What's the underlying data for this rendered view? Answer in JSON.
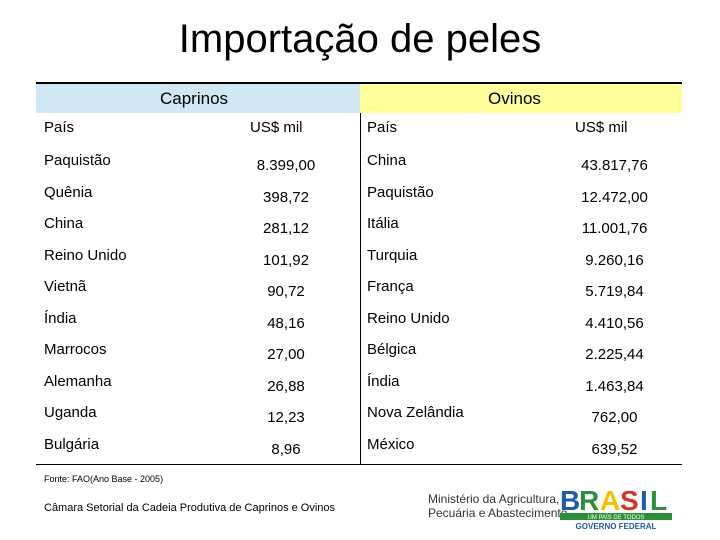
{
  "title": "Importação de peles",
  "groups": {
    "left": "Caprinos",
    "right": "Ovinos"
  },
  "columns": {
    "country": "País",
    "value": "US$ mil"
  },
  "caprinos": [
    {
      "country": "Paquistão",
      "value": "8.399,00"
    },
    {
      "country": "Quênia",
      "value": "398,72"
    },
    {
      "country": "China",
      "value": "281,12"
    },
    {
      "country": "Reino Unido",
      "value": "101,92"
    },
    {
      "country": "Vietnã",
      "value": "90,72"
    },
    {
      "country": "Índia",
      "value": "48,16"
    },
    {
      "country": "Marrocos",
      "value": "27,00"
    },
    {
      "country": "Alemanha",
      "value": "26,88"
    },
    {
      "country": "Uganda",
      "value": "12,23"
    },
    {
      "country": "Bulgária",
      "value": "8,96"
    }
  ],
  "ovinos": [
    {
      "country": "China",
      "value": "43.817,76"
    },
    {
      "country": "Paquistão",
      "value": "12.472,00"
    },
    {
      "country": "Itália",
      "value": "11.001,76"
    },
    {
      "country": "Turquia",
      "value": "9.260,16"
    },
    {
      "country": "França",
      "value": "5.719,84"
    },
    {
      "country": "Reino Unido",
      "value": "4.410,56"
    },
    {
      "country": "Bélgica",
      "value": "2.225,44"
    },
    {
      "country": "Índia",
      "value": "1.463,84"
    },
    {
      "country": "Nova Zelândia",
      "value": "762,00"
    },
    {
      "country": "México",
      "value": "639,52"
    }
  ],
  "footnote": "Fonte: FAO(Ano Base - 2005)",
  "credit": "Câmara Setorial da Cadeia Produtiva de Caprinos e Ovinos",
  "ministry": {
    "line1": "Ministério da Agricultura,",
    "line2": "Pecuária e Abastecimento"
  },
  "brand": {
    "name": "BRASIL",
    "tagline": "UM PAÍS DE TODOS",
    "subtitle": "GOVERNO FEDERAL"
  },
  "colors": {
    "caprinos_header": "#cfe8f4",
    "ovinos_header": "#ffff99"
  }
}
